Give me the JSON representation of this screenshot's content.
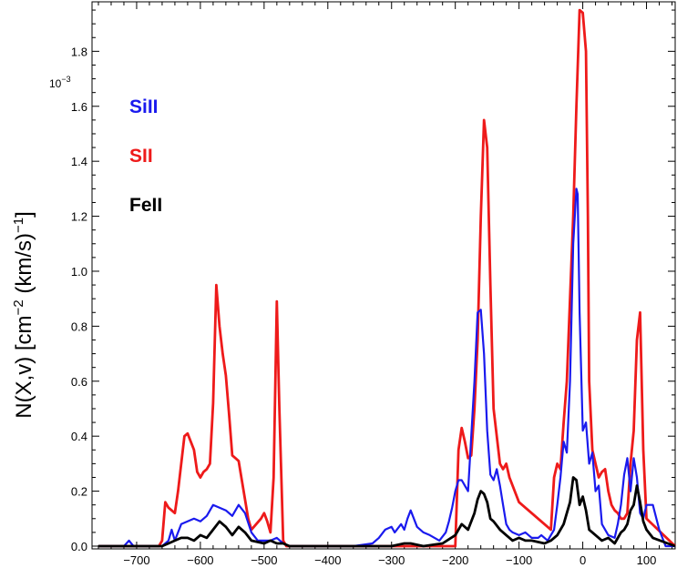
{
  "chart_data": {
    "type": "line",
    "title": "",
    "xlabel": "",
    "ylabel": "N(X,v) [cm",
    "ylabel_exp1": "−2",
    "ylabel_mid": " (km/s)",
    "ylabel_exp2": "−1",
    "ylabel_close": "]",
    "y_multiplier_base": "10",
    "y_multiplier_exp": "−3",
    "xlim": [
      -770,
      145
    ],
    "ylim": [
      -0.01,
      1.98
    ],
    "xticks": [
      -700,
      -600,
      -500,
      -400,
      -300,
      -200,
      -100,
      0,
      100
    ],
    "xtick_labels": [
      "−700",
      "−600",
      "−500",
      "−400",
      "−300",
      "−200",
      "−100",
      "0",
      "100"
    ],
    "yticks": [
      0.0,
      0.2,
      0.4,
      0.6,
      0.8,
      1.0,
      1.2,
      1.4,
      1.6,
      1.8
    ],
    "ytick_labels": [
      "0.0",
      "0.2",
      "0.4",
      "0.6",
      "0.8",
      "1.0",
      "1.2",
      "1.4",
      "1.6",
      "1.8"
    ],
    "legend_position": "top-left",
    "series": [
      {
        "name": "SiII",
        "color": "#1a1aee",
        "x": [
          -760,
          -720,
          -712,
          -705,
          -690,
          -660,
          -650,
          -645,
          -640,
          -630,
          -620,
          -610,
          -600,
          -590,
          -580,
          -570,
          -560,
          -550,
          -540,
          -530,
          -520,
          -510,
          -500,
          -490,
          -480,
          -470,
          -460,
          -440,
          -400,
          -360,
          -330,
          -320,
          -310,
          -300,
          -295,
          -285,
          -280,
          -275,
          -270,
          -260,
          -250,
          -240,
          -225,
          -215,
          -210,
          -205,
          -200,
          -195,
          -190,
          -180,
          -175,
          -170,
          -165,
          -160,
          -155,
          -150,
          -145,
          -140,
          -135,
          -130,
          -125,
          -120,
          -115,
          -110,
          -100,
          -90,
          -80,
          -70,
          -65,
          -55,
          -45,
          -40,
          -35,
          -30,
          -25,
          -20,
          -15,
          -10,
          -8,
          -5,
          0,
          5,
          10,
          15,
          20,
          25,
          30,
          40,
          50,
          55,
          60,
          65,
          70,
          75,
          80,
          85,
          90,
          95,
          100,
          110,
          120,
          130,
          145
        ],
        "y": [
          0,
          0,
          0.02,
          0,
          0,
          0,
          0.02,
          0.06,
          0.02,
          0.08,
          0.09,
          0.1,
          0.09,
          0.11,
          0.15,
          0.14,
          0.13,
          0.11,
          0.15,
          0.12,
          0.05,
          0.02,
          0.02,
          0.02,
          0.03,
          0.01,
          0,
          0,
          0,
          0,
          0.01,
          0.03,
          0.06,
          0.07,
          0.05,
          0.08,
          0.06,
          0.1,
          0.13,
          0.07,
          0.05,
          0.04,
          0.02,
          0.05,
          0.09,
          0.14,
          0.2,
          0.24,
          0.24,
          0.2,
          0.4,
          0.6,
          0.85,
          0.86,
          0.7,
          0.42,
          0.26,
          0.24,
          0.28,
          0.22,
          0.15,
          0.08,
          0.06,
          0.05,
          0.04,
          0.05,
          0.03,
          0.03,
          0.04,
          0.02,
          0.06,
          0.15,
          0.25,
          0.38,
          0.34,
          0.6,
          1.1,
          1.3,
          1.28,
          0.85,
          0.42,
          0.45,
          0.3,
          0.34,
          0.2,
          0.22,
          0.08,
          0.04,
          0.03,
          0.08,
          0.15,
          0.26,
          0.32,
          0.2,
          0.32,
          0.25,
          0.12,
          0.1,
          0.15,
          0.15,
          0.06,
          0,
          0
        ]
      },
      {
        "name": "SII",
        "color": "#ee1a1a",
        "x": [
          -760,
          -665,
          -660,
          -655,
          -650,
          -640,
          -635,
          -630,
          -625,
          -620,
          -610,
          -605,
          -600,
          -595,
          -590,
          -585,
          -580,
          -575,
          -570,
          -565,
          -560,
          -555,
          -550,
          -545,
          -540,
          -530,
          -525,
          -520,
          -505,
          -500,
          -495,
          -490,
          -485,
          -480,
          -476,
          -470,
          -465,
          -460,
          -200,
          -195,
          -190,
          -185,
          -180,
          -175,
          -170,
          -165,
          -160,
          -155,
          -150,
          -145,
          -140,
          -130,
          -125,
          -120,
          -115,
          -100,
          -50,
          -45,
          -40,
          -35,
          -30,
          -25,
          -20,
          -15,
          -10,
          -5,
          0,
          5,
          8,
          10,
          15,
          20,
          25,
          30,
          35,
          40,
          45,
          50,
          55,
          60,
          65,
          70,
          75,
          80,
          85,
          90,
          95,
          100,
          145
        ],
        "y": [
          0,
          0,
          0.02,
          0.16,
          0.14,
          0.12,
          0.2,
          0.3,
          0.4,
          0.41,
          0.35,
          0.27,
          0.25,
          0.27,
          0.28,
          0.3,
          0.52,
          0.95,
          0.8,
          0.7,
          0.62,
          0.48,
          0.33,
          0.32,
          0.31,
          0.17,
          0.1,
          0.06,
          0.1,
          0.12,
          0.09,
          0.05,
          0.25,
          0.89,
          0.5,
          0.02,
          0,
          0,
          0,
          0.35,
          0.43,
          0.38,
          0.32,
          0.33,
          0.5,
          0.75,
          1.2,
          1.55,
          1.45,
          0.95,
          0.5,
          0.3,
          0.28,
          0.3,
          0.25,
          0.16,
          0.06,
          0.25,
          0.3,
          0.28,
          0.45,
          0.6,
          0.9,
          1.2,
          1.6,
          1.95,
          1.94,
          1.8,
          1.2,
          0.6,
          0.35,
          0.3,
          0.25,
          0.27,
          0.28,
          0.2,
          0.15,
          0.13,
          0.12,
          0.1,
          0.1,
          0.12,
          0.3,
          0.42,
          0.75,
          0.85,
          0.35,
          0.1,
          0
        ]
      },
      {
        "name": "FeII",
        "color": "#000000",
        "x": [
          -760,
          -660,
          -650,
          -640,
          -630,
          -620,
          -610,
          -600,
          -590,
          -580,
          -570,
          -560,
          -550,
          -540,
          -530,
          -520,
          -500,
          -490,
          -480,
          -470,
          -460,
          -300,
          -280,
          -270,
          -250,
          -220,
          -200,
          -190,
          -180,
          -170,
          -165,
          -160,
          -155,
          -150,
          -145,
          -140,
          -130,
          -120,
          -110,
          -100,
          -90,
          -80,
          -60,
          -50,
          -40,
          -30,
          -25,
          -20,
          -15,
          -10,
          -5,
          0,
          5,
          10,
          20,
          30,
          40,
          50,
          60,
          65,
          70,
          75,
          80,
          85,
          90,
          95,
          100,
          110,
          145
        ],
        "y": [
          0,
          0,
          0.01,
          0.02,
          0.03,
          0.03,
          0.02,
          0.04,
          0.03,
          0.06,
          0.09,
          0.07,
          0.04,
          0.07,
          0.05,
          0.02,
          0.01,
          0.02,
          0.01,
          0.01,
          0,
          0,
          0.01,
          0.01,
          0,
          0.01,
          0.04,
          0.08,
          0.06,
          0.12,
          0.17,
          0.2,
          0.19,
          0.16,
          0.1,
          0.09,
          0.06,
          0.04,
          0.02,
          0.03,
          0.02,
          0.02,
          0.01,
          0.02,
          0.04,
          0.08,
          0.12,
          0.16,
          0.25,
          0.24,
          0.15,
          0.18,
          0.13,
          0.06,
          0.04,
          0.02,
          0.03,
          0.01,
          0.05,
          0.06,
          0.08,
          0.13,
          0.15,
          0.22,
          0.16,
          0.09,
          0.06,
          0.03,
          0
        ]
      }
    ]
  }
}
